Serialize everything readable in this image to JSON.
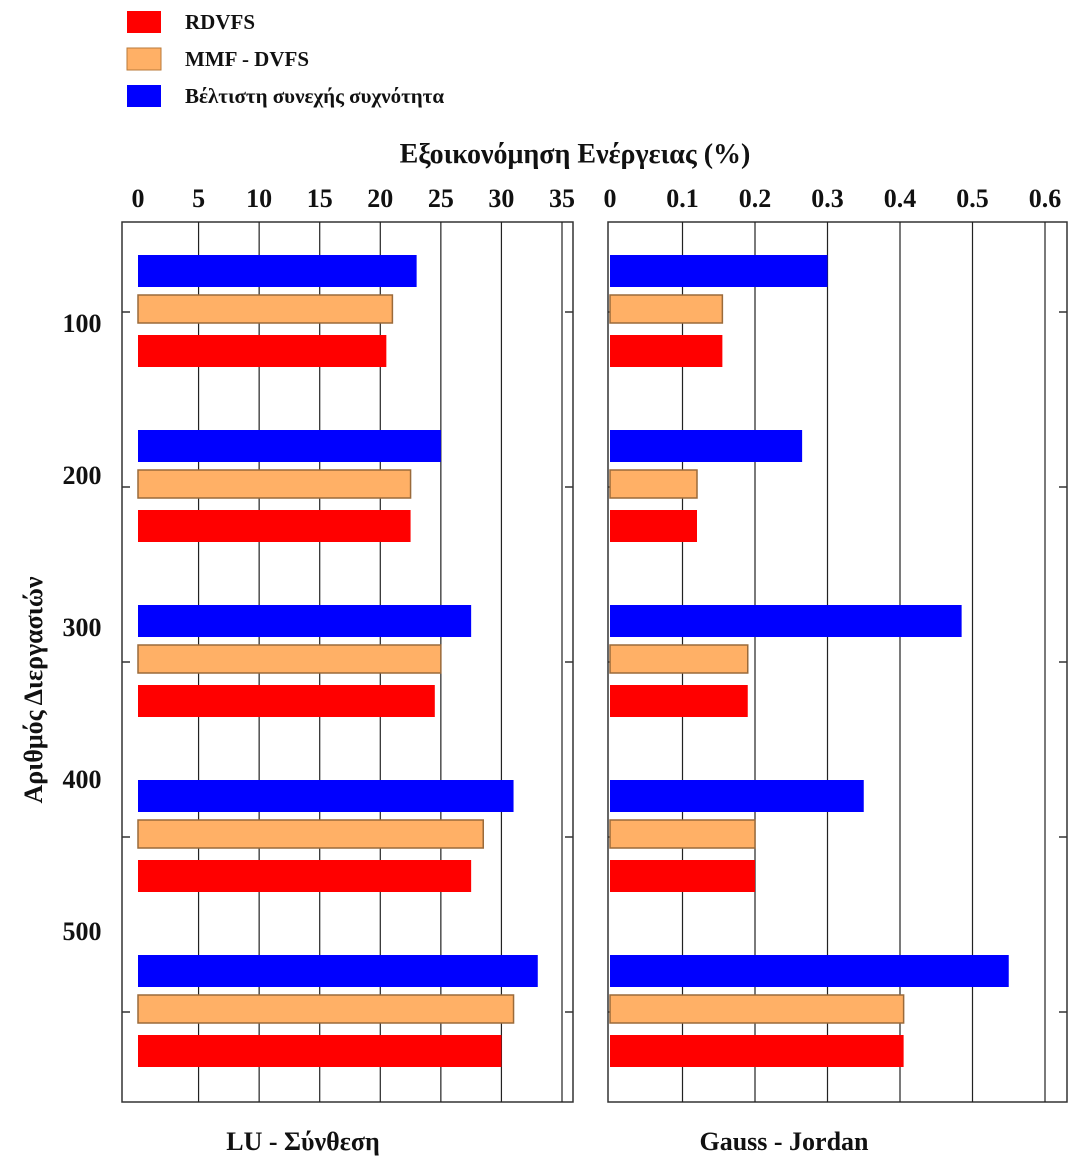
{
  "chart_data": {
    "type": "bar",
    "orientation": "horizontal",
    "title": "Εξοικονόμηση Ενέργειας (%)",
    "ylabel": "Αριθμός Διεργασιών",
    "categories": [
      "100",
      "200",
      "300",
      "400",
      "500"
    ],
    "legend": {
      "placement": "top-left",
      "entries": [
        {
          "name": "RDVFS",
          "color": "#ff0000"
        },
        {
          "name": "MMF - DVFS",
          "color": "#ffb066"
        },
        {
          "name": "Βέλτιστη συνεχής συχνότητα",
          "color": "#0000ff"
        }
      ]
    },
    "panels": [
      {
        "subtitle": "LU - Σύνθεση",
        "xlim": [
          0,
          35
        ],
        "xticks": [
          "0",
          "5",
          "10",
          "15",
          "20",
          "25",
          "30",
          "35"
        ],
        "grid": true,
        "series": [
          {
            "name": "Βέλτιστη συνεχής συχνότητα",
            "color": "#0000ff",
            "values": [
              23,
              25,
              27.5,
              31,
              33
            ]
          },
          {
            "name": "MMF - DVFS",
            "color": "#ffb066",
            "values": [
              21,
              22.5,
              25,
              28.5,
              31
            ]
          },
          {
            "name": "RDVFS",
            "color": "#ff0000",
            "values": [
              20.5,
              22.5,
              24.5,
              27.5,
              30
            ]
          }
        ]
      },
      {
        "subtitle": "Gauss - Jordan",
        "xlim": [
          0,
          0.6
        ],
        "xticks": [
          "0",
          "0.1",
          "0.2",
          "0.3",
          "0.4",
          "0.5",
          "0.6"
        ],
        "grid": true,
        "series": [
          {
            "name": "Βέλτιστη συνεχής συχνότητα",
            "color": "#0000ff",
            "values": [
              0.3,
              0.265,
              0.485,
              0.35,
              0.55
            ]
          },
          {
            "name": "MMF - DVFS",
            "color": "#ffb066",
            "values": [
              0.155,
              0.12,
              0.19,
              0.2,
              0.405
            ]
          },
          {
            "name": "RDVFS",
            "color": "#ff0000",
            "values": [
              0.155,
              0.12,
              0.19,
              0.2,
              0.405
            ]
          }
        ]
      }
    ]
  }
}
